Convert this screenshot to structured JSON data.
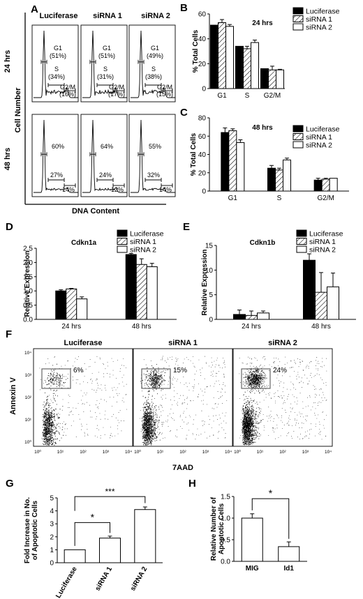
{
  "panel_letters": {
    "a": "A",
    "b": "B",
    "c": "C",
    "d": "D",
    "e": "E",
    "f": "F",
    "g": "G",
    "h": "H"
  },
  "panel_a": {
    "columns": [
      "Luciferase",
      "siRNA 1",
      "siRNA 2"
    ],
    "rows": [
      "24 hrs",
      "48 hrs"
    ],
    "ylabel": "Cell Number",
    "xlabel": "DNA Content",
    "labels_24h": [
      [
        "G1",
        "(51%)",
        "S",
        "(34%)",
        "G2/M",
        "(16%)"
      ],
      [
        "G1",
        "(51%)",
        "S",
        "(31%)",
        "G2/M",
        "(17%)"
      ],
      [
        "G1",
        "(49%)",
        "S",
        "(38%)",
        "G2/M",
        "(15%)"
      ]
    ],
    "labels_48h": [
      [
        "60%",
        "27%",
        "14%"
      ],
      [
        "64%",
        "24%",
        "12%"
      ],
      [
        "55%",
        "32%",
        "14%"
      ]
    ]
  },
  "chart_data": [
    {
      "id": "B",
      "type": "bar",
      "title": "24 hrs",
      "categories": [
        "G1",
        "S",
        "G2/M"
      ],
      "ylabel": "% Total Cells",
      "ylim": [
        0,
        60
      ],
      "yticks": [
        "0",
        "20",
        "40",
        "60"
      ],
      "series": [
        {
          "name": "Luciferase",
          "values": [
            51,
            34,
            16
          ],
          "errors": [
            0,
            0,
            0
          ]
        },
        {
          "name": "siRNA 1",
          "values": [
            53,
            32,
            15
          ],
          "errors": [
            2.5,
            2,
            3
          ]
        },
        {
          "name": "siRNA 2",
          "values": [
            50,
            37,
            15
          ],
          "errors": [
            1.5,
            2,
            0.5
          ]
        }
      ]
    },
    {
      "id": "C",
      "type": "bar",
      "title": "48 hrs",
      "categories": [
        "G1",
        "S",
        "G2/M"
      ],
      "ylabel": "% Total Cells",
      "ylim": [
        0,
        80
      ],
      "yticks": [
        "0",
        "20",
        "40",
        "60",
        "80"
      ],
      "series": [
        {
          "name": "Luciferase",
          "values": [
            64,
            25,
            12
          ],
          "errors": [
            5,
            3,
            2
          ]
        },
        {
          "name": "siRNA 1",
          "values": [
            66,
            23,
            13
          ],
          "errors": [
            2,
            2,
            1
          ]
        },
        {
          "name": "siRNA 2",
          "values": [
            53,
            34,
            14
          ],
          "errors": [
            3,
            2,
            0
          ]
        }
      ]
    },
    {
      "id": "D",
      "type": "bar",
      "title": "Cdkn1a",
      "categories": [
        "24 hrs",
        "48 hrs"
      ],
      "ylabel": "Relative Expression",
      "ylim": [
        0,
        2.5
      ],
      "yticks": [
        "0.0",
        "0.5",
        "1.0",
        "1.5",
        "2.0",
        "2.5"
      ],
      "series": [
        {
          "name": "Luciferase",
          "values": [
            1.0,
            2.28
          ],
          "errors": [
            0.04,
            0.04
          ]
        },
        {
          "name": "siRNA 1",
          "values": [
            1.07,
            1.93
          ],
          "errors": [
            0.02,
            0.2
          ]
        },
        {
          "name": "siRNA 2",
          "values": [
            0.72,
            1.85
          ],
          "errors": [
            0.07,
            0.12
          ]
        }
      ]
    },
    {
      "id": "E",
      "type": "bar",
      "title": "Cdkn1b",
      "categories": [
        "24 hrs",
        "48 hrs"
      ],
      "ylabel": "Relative Expression",
      "ylim": [
        0,
        15
      ],
      "yticks": [
        "0",
        "5",
        "10",
        "15"
      ],
      "series": [
        {
          "name": "Luciferase",
          "values": [
            1.0,
            12.0
          ],
          "errors": [
            0.9,
            1.3
          ]
        },
        {
          "name": "siRNA 1",
          "values": [
            0.8,
            5.5
          ],
          "errors": [
            0.9,
            4.0
          ]
        },
        {
          "name": "siRNA 2",
          "values": [
            1.3,
            6.6
          ],
          "errors": [
            0.4,
            2.8
          ]
        }
      ]
    },
    {
      "id": "G",
      "type": "bar",
      "title": "",
      "categories": [
        "Luciferase",
        "siRNA 1",
        "siRNA 2"
      ],
      "ylabel": "Fold Increase in No. of Apoptotic Cells",
      "ylim": [
        0,
        5
      ],
      "yticks": [
        "0",
        "1",
        "2",
        "3",
        "4",
        "5"
      ],
      "series": [
        {
          "name": "",
          "values": [
            1.0,
            1.9,
            4.1
          ],
          "errors": [
            0,
            0.15,
            0.2
          ]
        }
      ],
      "annotations": [
        "*",
        "***"
      ]
    },
    {
      "id": "H",
      "type": "bar",
      "title": "",
      "categories": [
        "MIG",
        "Id1"
      ],
      "ylabel": "Relative Number of Apoptotic Cells",
      "ylim": [
        0,
        1.5
      ],
      "yticks": [
        "0.0",
        "0.5",
        "1.0",
        "1.5"
      ],
      "series": [
        {
          "name": "",
          "values": [
            1.0,
            0.34
          ],
          "errors": [
            0.1,
            0.11
          ]
        }
      ],
      "annotations": [
        "*"
      ]
    }
  ],
  "panel_f": {
    "titles": [
      "Luciferase",
      "siRNA 1",
      "siRNA 2"
    ],
    "ylabel": "Annexin V",
    "xlabel": "7AAD",
    "gate_percent": [
      "6%",
      "15%",
      "24%"
    ],
    "axis_ticks": [
      "10⁰",
      "10¹",
      "10²",
      "10³",
      "10⁴"
    ],
    "gate_fraction": [
      0.06,
      0.15,
      0.24
    ]
  },
  "legend": [
    "Luciferase",
    "siRNA 1",
    "siRNA 2"
  ],
  "colors": {
    "luciferase": "#000000",
    "sirna1": "hatched",
    "sirna2": "#ffffff"
  }
}
